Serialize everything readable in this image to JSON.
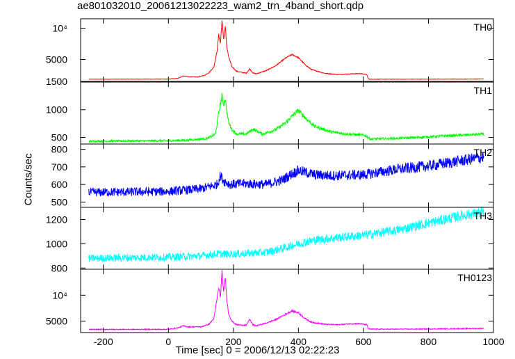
{
  "chart_data": {
    "type": "line",
    "title": "ae801032010_20061213022223_wam2_trn_4band_short.qdp",
    "xlabel": "Time [sec] 0 = 2006/12/13 02:22:23",
    "ylabel": "Counts/sec",
    "xlim": [
      -270,
      1000
    ],
    "x_ticks": [
      "-200",
      "0",
      "200",
      "400",
      "600",
      "800",
      "1000"
    ],
    "x_tick_values": [
      -200,
      0,
      200,
      400,
      600,
      800,
      1000
    ],
    "panels": [
      {
        "name": "TH0",
        "color": "#ff0000",
        "ylim": [
          1500,
          11500
        ],
        "y_ticks": [
          "1500",
          "5000",
          "10⁴"
        ],
        "y_tick_values": [
          1500,
          5000,
          10000
        ],
        "series": {
          "x": [
            -245,
            0,
            30,
            45,
            60,
            90,
            110,
            125,
            140,
            150,
            155,
            160,
            165,
            170,
            175,
            180,
            185,
            195,
            210,
            240,
            250,
            260,
            270,
            300,
            330,
            360,
            380,
            400,
            420,
            440,
            480,
            520,
            560,
            590,
            610,
            615,
            620,
            650,
            700,
            800,
            900,
            970
          ],
          "y": [
            1850,
            1870,
            2000,
            2350,
            2250,
            2200,
            2450,
            2900,
            3800,
            6500,
            9000,
            7500,
            11300,
            8200,
            10200,
            7000,
            5500,
            3900,
            3100,
            2800,
            3500,
            2850,
            2700,
            3200,
            4000,
            5200,
            5800,
            5300,
            4200,
            3400,
            2800,
            2600,
            2700,
            2750,
            2600,
            1950,
            1850,
            1850,
            1850,
            1860,
            1870,
            1880
          ],
          "noise": 0.02
        }
      },
      {
        "name": "TH1",
        "color": "#00ff00",
        "ylim": [
          380,
          1500
        ],
        "y_ticks": [
          "500",
          "1000"
        ],
        "y_tick_values": [
          500,
          1000
        ],
        "series": {
          "x": [
            -245,
            0,
            60,
            120,
            145,
            150,
            155,
            160,
            165,
            170,
            175,
            180,
            185,
            195,
            210,
            240,
            260,
            290,
            330,
            360,
            380,
            400,
            420,
            450,
            500,
            550,
            600,
            610,
            620,
            700,
            800,
            900,
            970
          ],
          "y": [
            430,
            440,
            450,
            480,
            560,
            750,
            950,
            1100,
            1250,
            1100,
            1200,
            950,
            780,
            640,
            560,
            560,
            650,
            560,
            640,
            760,
            880,
            990,
            860,
            700,
            600,
            560,
            540,
            520,
            470,
            480,
            510,
            540,
            560
          ],
          "noise": 0.045
        }
      },
      {
        "name": "TH2",
        "color": "#0000ff",
        "ylim": [
          470,
          830
        ],
        "y_ticks": [
          "500",
          "600",
          "700",
          "800"
        ],
        "y_tick_values": [
          500,
          600,
          700,
          800
        ],
        "series": {
          "x": [
            -245,
            0,
            100,
            150,
            160,
            170,
            190,
            230,
            300,
            350,
            380,
            400,
            420,
            450,
            500,
            600,
            700,
            800,
            900,
            970
          ],
          "y": [
            555,
            560,
            575,
            600,
            650,
            620,
            600,
            605,
            600,
            625,
            660,
            680,
            670,
            655,
            650,
            655,
            685,
            705,
            735,
            755
          ],
          "noise": 0.045
        }
      },
      {
        "name": "TH3",
        "color": "#00ffff",
        "ylim": [
          790,
          1300
        ],
        "y_ticks": [
          "800",
          "1000",
          "1200"
        ],
        "y_tick_values": [
          800,
          1000,
          1200
        ],
        "series": {
          "x": [
            -245,
            0,
            100,
            150,
            200,
            300,
            350,
            400,
            450,
            500,
            600,
            700,
            800,
            900,
            970
          ],
          "y": [
            880,
            890,
            900,
            915,
            915,
            930,
            960,
            1000,
            1030,
            1045,
            1070,
            1110,
            1170,
            1230,
            1260
          ],
          "noise": 0.035
        }
      },
      {
        "name": "TH0123",
        "color": "#ff00ff",
        "ylim": [
          2800,
          15000
        ],
        "y_ticks": [
          "5000",
          "10⁴"
        ],
        "y_tick_values": [
          5000,
          10000
        ],
        "series": {
          "x": [
            -245,
            0,
            30,
            45,
            60,
            100,
            125,
            140,
            150,
            155,
            160,
            165,
            170,
            175,
            180,
            185,
            195,
            210,
            240,
            250,
            260,
            270,
            300,
            330,
            360,
            380,
            400,
            420,
            440,
            480,
            520,
            560,
            590,
            610,
            615,
            620,
            650,
            700,
            800,
            900,
            970
          ],
          "y": [
            3400,
            3420,
            3700,
            4100,
            3900,
            3900,
            4400,
            5500,
            9500,
            11500,
            9500,
            14500,
            10500,
            13500,
            9000,
            6500,
            5000,
            4300,
            4200,
            5400,
            4300,
            4100,
            4600,
            5300,
            6300,
            7000,
            6600,
            5500,
            4800,
            4400,
            4300,
            4500,
            4500,
            4300,
            3600,
            3450,
            3450,
            3450,
            3480,
            3550,
            3600
          ],
          "noise": 0.025
        }
      }
    ]
  }
}
